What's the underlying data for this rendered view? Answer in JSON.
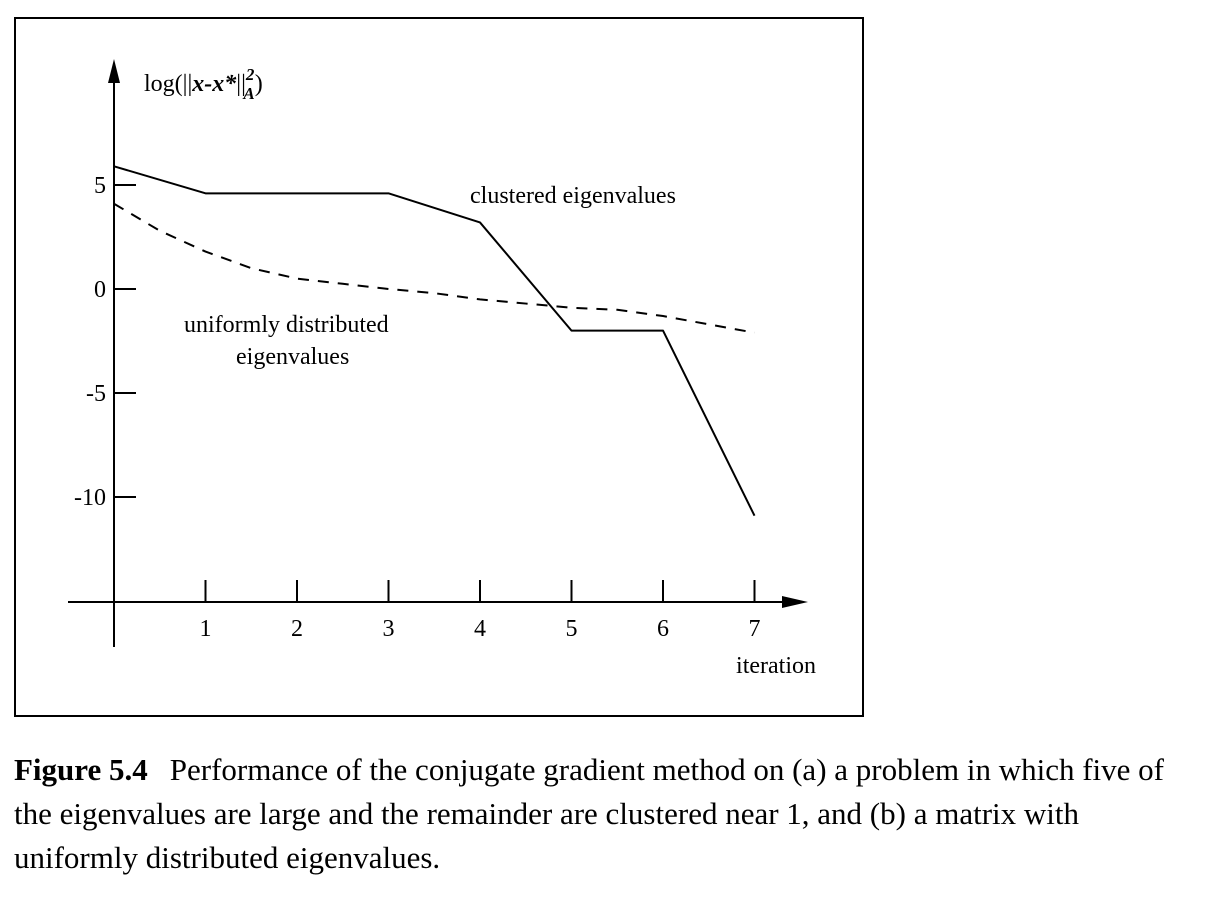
{
  "chart_data": {
    "type": "line",
    "ylabel": {
      "prefix": "log(||",
      "expr": "x-x*",
      "bars": "||",
      "sup": "2",
      "sub": "A",
      "suffix": ")"
    },
    "xlabel": "iteration",
    "x_ticks": [
      1,
      2,
      3,
      4,
      5,
      6,
      7
    ],
    "x_tick_labels": [
      "1",
      "2",
      "3",
      "4",
      "5",
      "6",
      "7"
    ],
    "y_ticks": [
      5,
      0,
      -5,
      -10
    ],
    "y_tick_labels": [
      "5",
      "0",
      "-5",
      "-10"
    ],
    "xlim": [
      -0.5,
      7.5
    ],
    "ylim": [
      -15,
      10
    ],
    "grid": false,
    "legend": "none",
    "series": [
      {
        "name": "clustered eigenvalues",
        "style": "solid",
        "x": [
          0,
          1,
          2,
          3,
          4,
          5,
          6,
          7
        ],
        "y": [
          5.9,
          4.6,
          4.6,
          4.6,
          3.2,
          -2.0,
          -2.0,
          -10.9
        ]
      },
      {
        "name": "uniformly distributed eigenvalues",
        "style": "dashed",
        "x": [
          0,
          0.5,
          1,
          1.5,
          2,
          2.5,
          3,
          3.5,
          4,
          4.5,
          5,
          5.5,
          6,
          6.5,
          7
        ],
        "y": [
          4.1,
          2.8,
          1.8,
          1.0,
          0.5,
          0.25,
          0.0,
          -0.2,
          -0.5,
          -0.7,
          -0.9,
          -1.0,
          -1.3,
          -1.7,
          -2.1
        ]
      }
    ],
    "annotations": {
      "clustered": "clustered eigenvalues",
      "uniform_line1": "uniformly distributed",
      "uniform_line2": "eigenvalues"
    }
  },
  "caption": {
    "label": "Figure 5.4",
    "text": "Performance of the conjugate gradient method on (a) a problem in which five of the eigenvalues are large and the remainder are clustered near 1, and (b) a matrix with uniformly distributed eigenvalues."
  }
}
